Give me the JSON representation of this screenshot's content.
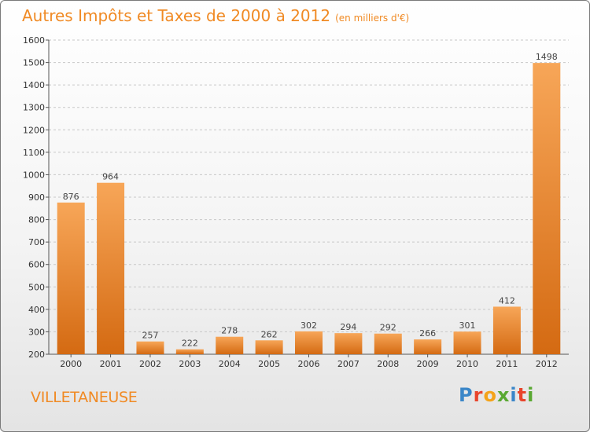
{
  "title": "Autres Impôts et Taxes de 2000 à 2012",
  "unit": "(en milliers d'€)",
  "location": "VILLETANEUSE",
  "brand": {
    "letters": [
      "P",
      "r",
      "o",
      "x",
      "i",
      "t",
      "i"
    ],
    "colors": [
      "#3a86c8",
      "#e8452c",
      "#f4a31a",
      "#5aa832",
      "#3a86c8",
      "#e8452c",
      "#5aa832"
    ]
  },
  "colors": {
    "bar_top": "#f7a658",
    "bar_bottom": "#d46a12",
    "text_accent": "#f08a24",
    "grid": "#c8c8c8"
  },
  "chart_data": {
    "type": "bar",
    "categories": [
      "2000",
      "2001",
      "2002",
      "2003",
      "2004",
      "2005",
      "2006",
      "2007",
      "2008",
      "2009",
      "2010",
      "2011",
      "2012"
    ],
    "values": [
      876,
      964,
      257,
      222,
      278,
      262,
      302,
      294,
      292,
      266,
      301,
      412,
      1498
    ],
    "ylim": [
      200,
      1600
    ],
    "yticks": [
      200,
      300,
      400,
      500,
      600,
      700,
      800,
      900,
      1000,
      1100,
      1200,
      1300,
      1400,
      1500,
      1600
    ],
    "grid": true,
    "xlabel": "",
    "ylabel": ""
  }
}
